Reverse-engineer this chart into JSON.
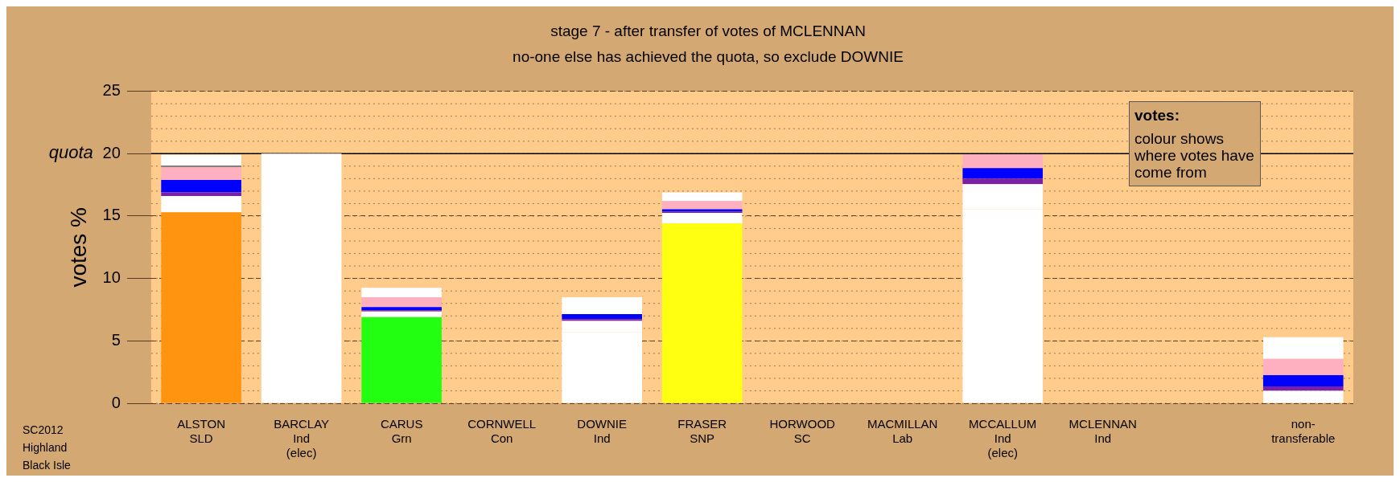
{
  "chart_data": {
    "type": "bar",
    "title": "stage 7 - after transfer of votes of MCLENNAN",
    "subtitle": "no-one else has achieved the quota, so exclude DOWNIE",
    "ylabel": "votes %",
    "categories": [
      "ALSTON\nSLD",
      "BARCLAY\nInd\n(elec)",
      "CARUS\nGrn",
      "CORNWELL\nCon",
      "DOWNIE\nInd",
      "FRASER\nSNP",
      "HORWOOD\nSC",
      "MACMILLAN\nLab",
      "MCCALLUM\nInd\n(elec)",
      "MCLENNAN\nInd",
      null,
      "non-\ntransferable"
    ],
    "stacked": true,
    "series": [
      {
        "colors": [
          "#ff9410",
          "#ffffff",
          "#22ff11",
          "#ffffff",
          "#ffffff",
          "#ffff11",
          "#ffffff",
          "#ffffff",
          "#ffffff",
          "#ffffff",
          "#ffffff",
          "#ffffff"
        ],
        "values": [
          15.3,
          20,
          6.9,
          0,
          5.7,
          14.4,
          0,
          0,
          15.55,
          0,
          0,
          1.0
        ]
      },
      {
        "color": "#ffffff",
        "values": [
          1.3,
          0,
          0.45,
          0,
          0.9,
          0.85,
          0,
          0,
          2.0,
          0,
          0,
          0
        ]
      },
      {
        "color": "#7a1fa8",
        "values": [
          0.3,
          0,
          0.1,
          0,
          0.15,
          0.1,
          0,
          0,
          0.45,
          0,
          0,
          0.35
        ]
      },
      {
        "color": "#0000ff",
        "values": [
          1.0,
          0,
          0.25,
          0,
          0.4,
          0.2,
          0,
          0,
          0.85,
          0,
          0,
          0.9
        ]
      },
      {
        "color": "#ffb0c0",
        "values": [
          1.0,
          0,
          0.8,
          0,
          null,
          0.65,
          0,
          0,
          1.1,
          0,
          0,
          1.3
        ]
      },
      {
        "color": "#808080",
        "values": [
          0.15,
          0,
          0,
          0,
          null,
          null,
          0,
          0,
          0,
          0,
          0,
          null
        ]
      },
      {
        "color": "#ffffff",
        "values": [
          0.85,
          0,
          0.75,
          0,
          1.35,
          0.7,
          0,
          0,
          0,
          0,
          0,
          1.75
        ]
      }
    ],
    "ylim": [
      0,
      25
    ],
    "yticks": [
      0,
      5,
      10,
      15,
      20,
      25
    ],
    "grid": "y",
    "legend": false,
    "ref_lines": [
      {
        "axis": "y",
        "value": 20,
        "label": "quota"
      }
    ],
    "annotations": [
      "votes:",
      "colour shows where votes have come from",
      "SC2012",
      "Highland",
      "Black Isle"
    ]
  }
}
